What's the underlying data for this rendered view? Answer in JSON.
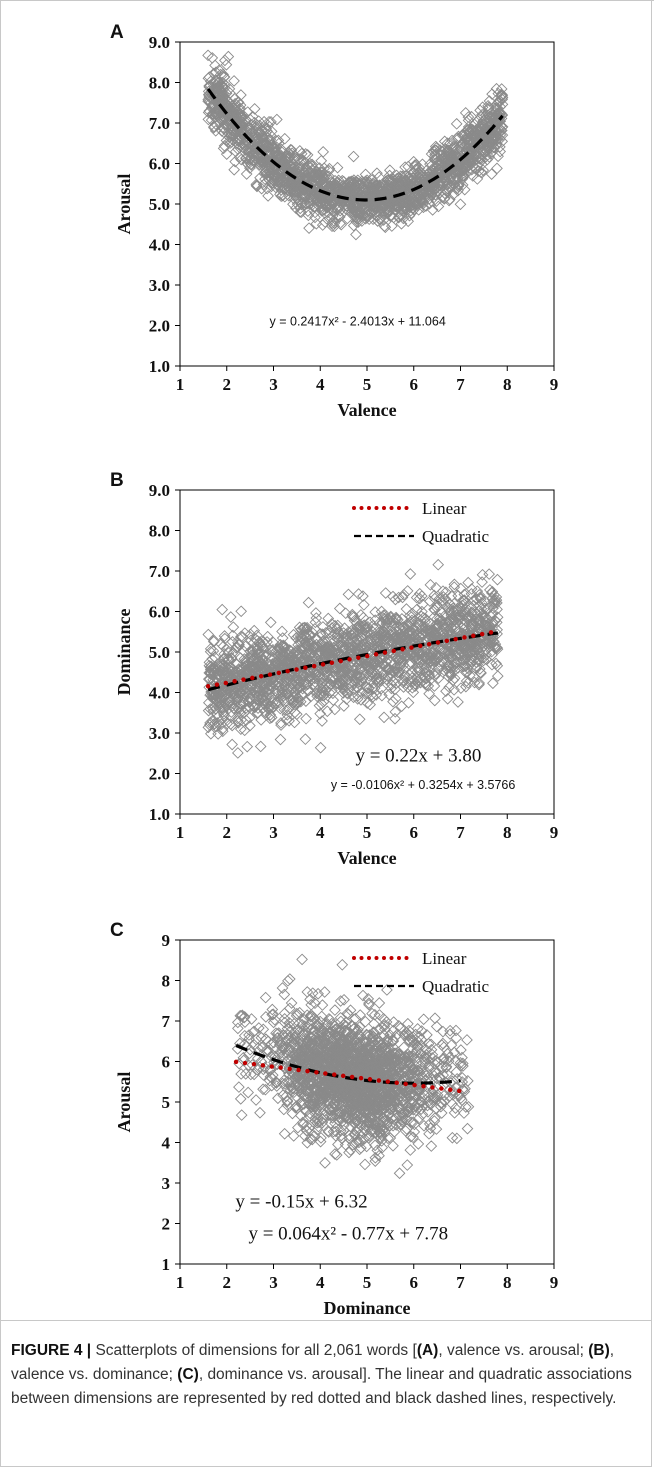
{
  "figure": {
    "caption_label": "FIGURE 4 |",
    "caption_parts": [
      " Scatterplots of dimensions for all 2,061 words [",
      "(A)",
      ", valence vs. arousal; ",
      "(B)",
      ", valence vs. dominance; ",
      "(C)",
      ", dominance vs. arousal]. The linear and quadratic associations between dimensions are represented by red dotted and black dashed lines, respectively."
    ]
  },
  "colors": {
    "marker": "#8a8a8a",
    "linear": "#c00000",
    "quadratic": "#000000"
  },
  "chart_data": [
    {
      "panel": "A",
      "type": "scatter",
      "xlabel": "Valence",
      "ylabel": "Arousal",
      "xlim": [
        1,
        9
      ],
      "ylim": [
        1.0,
        9.0
      ],
      "xticks": [
        "1",
        "2",
        "3",
        "4",
        "5",
        "6",
        "7",
        "8",
        "9"
      ],
      "yticks": [
        "1.0",
        "2.0",
        "3.0",
        "4.0",
        "5.0",
        "6.0",
        "7.0",
        "8.0",
        "9.0"
      ],
      "grid": false,
      "legend": null,
      "point_cloud": {
        "n": 2061,
        "x_range": [
          1.6,
          7.9
        ],
        "shape": "u",
        "coef": [
          0.2417,
          -2.4013,
          11.064
        ],
        "spread": 0.55,
        "seed": 11
      },
      "fits": [
        {
          "kind": "quadratic",
          "style": "dashed",
          "coef": [
            0.2417,
            -2.4013,
            11.064
          ],
          "x_range": [
            1.6,
            7.9
          ]
        }
      ],
      "equations": [
        {
          "text": "y = 0.2417x² - 2.4013x + 11.064",
          "style": "sans",
          "at": [
            4.8,
            2.0
          ]
        }
      ]
    },
    {
      "panel": "B",
      "type": "scatter",
      "xlabel": "Valence",
      "ylabel": "Dominance",
      "xlim": [
        1,
        9
      ],
      "ylim": [
        1.0,
        9.0
      ],
      "xticks": [
        "1",
        "2",
        "3",
        "4",
        "5",
        "6",
        "7",
        "8",
        "9"
      ],
      "yticks": [
        "1.0",
        "2.0",
        "3.0",
        "4.0",
        "5.0",
        "6.0",
        "7.0",
        "8.0",
        "9.0"
      ],
      "grid": false,
      "legend": {
        "position": "top-right",
        "entries": [
          "Linear",
          "Quadratic"
        ]
      },
      "point_cloud": {
        "n": 2061,
        "x_range": [
          1.6,
          7.8
        ],
        "shape": "linear",
        "coef": [
          0.22,
          3.8
        ],
        "spread": 0.75,
        "seed": 23
      },
      "fits": [
        {
          "kind": "linear",
          "style": "dotted",
          "coef": [
            0.22,
            3.8
          ],
          "x_range": [
            1.6,
            7.8
          ]
        },
        {
          "kind": "quadratic",
          "style": "dashed",
          "coef": [
            -0.0106,
            0.3254,
            3.5766
          ],
          "x_range": [
            1.6,
            7.8
          ]
        }
      ],
      "equations": [
        {
          "text": "y = 0.22x + 3.80",
          "style": "serif",
          "at": [
            6.1,
            2.3
          ]
        },
        {
          "text": "y = -0.0106x² + 0.3254x + 3.5766",
          "style": "sans",
          "at": [
            6.2,
            1.62
          ]
        }
      ]
    },
    {
      "panel": "C",
      "type": "scatter",
      "xlabel": "Dominance",
      "ylabel": "Arousal",
      "xlim": [
        1,
        9
      ],
      "ylim": [
        1,
        9
      ],
      "xticks": [
        "1",
        "2",
        "3",
        "4",
        "5",
        "6",
        "7",
        "8",
        "9"
      ],
      "yticks": [
        "1",
        "2",
        "3",
        "4",
        "5",
        "6",
        "7",
        "8",
        "9"
      ],
      "grid": false,
      "legend": {
        "position": "top-right",
        "entries": [
          "Linear",
          "Quadratic"
        ]
      },
      "point_cloud": {
        "n": 2061,
        "x_range": [
          2.2,
          7.2
        ],
        "shape": "blob",
        "coef": [
          0.064,
          -0.77,
          7.78
        ],
        "spread": 0.7,
        "seed": 37
      },
      "fits": [
        {
          "kind": "linear",
          "style": "dotted",
          "coef": [
            -0.15,
            6.32
          ],
          "x_range": [
            2.2,
            7.0
          ]
        },
        {
          "kind": "quadratic",
          "style": "dashed",
          "coef": [
            0.064,
            -0.77,
            7.78
          ],
          "x_range": [
            2.2,
            7.0
          ]
        }
      ],
      "equations": [
        {
          "text": "y = -0.15x + 6.32",
          "style": "serif",
          "at": [
            3.6,
            2.4
          ]
        },
        {
          "text": "y = 0.064x² - 0.77x + 7.78",
          "style": "serif",
          "at": [
            4.6,
            1.6
          ]
        }
      ]
    }
  ]
}
